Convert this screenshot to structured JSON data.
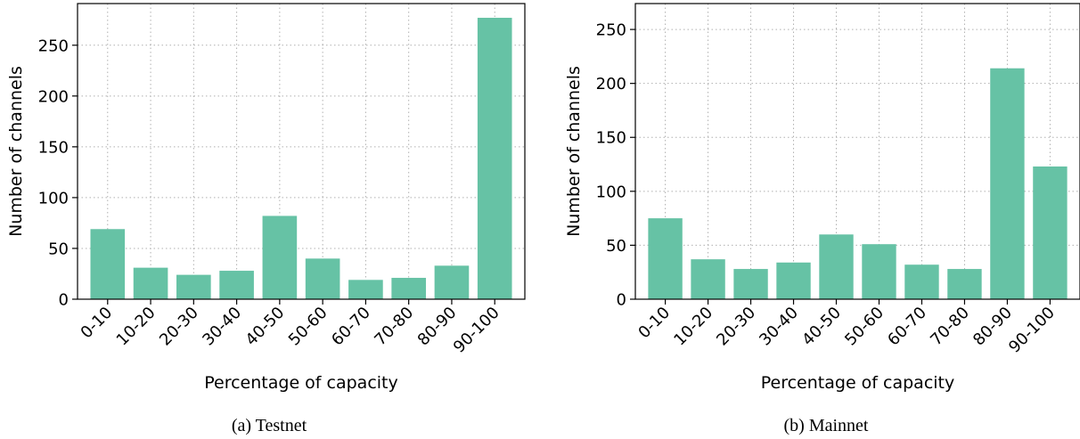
{
  "colors": {
    "bar": "#66c2a5"
  },
  "chart_data": [
    {
      "type": "bar",
      "title": "",
      "caption": "(a) Testnet",
      "xlabel": "Percentage of capacity",
      "ylabel": "Number of channels",
      "categories": [
        "0-10",
        "10-20",
        "20-30",
        "30-40",
        "40-50",
        "50-60",
        "60-70",
        "70-80",
        "80-90",
        "90-100"
      ],
      "values": [
        69,
        31,
        24,
        28,
        82,
        40,
        19,
        21,
        33,
        277
      ],
      "ylim": [
        0,
        291
      ],
      "yticks": [
        0,
        50,
        100,
        150,
        200,
        250
      ],
      "grid": true
    },
    {
      "type": "bar",
      "title": "",
      "caption": "(b) Mainnet",
      "xlabel": "Percentage of capacity",
      "ylabel": "Number of channels",
      "categories": [
        "0-10",
        "10-20",
        "20-30",
        "30-40",
        "40-50",
        "50-60",
        "60-70",
        "70-80",
        "80-90",
        "90-100"
      ],
      "values": [
        75,
        37,
        28,
        34,
        60,
        51,
        32,
        28,
        214,
        123
      ],
      "ylim": [
        0,
        274
      ],
      "yticks": [
        0,
        50,
        100,
        150,
        200,
        250
      ],
      "grid": true
    }
  ]
}
